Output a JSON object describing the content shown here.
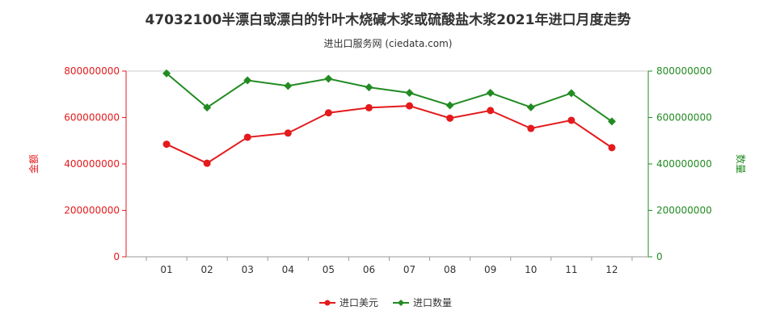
{
  "title": "47032100半漂白或漂白的针叶木烧碱木浆或硫酸盐木浆2021年进口月度走势",
  "subtitle": "进出口服务网 (ciedata.com)",
  "colors": {
    "amount": "#e41a1c",
    "quantity": "#228b22",
    "axis_left": "#e41a1c",
    "axis_right": "#228b22",
    "grid": "#dddddd"
  },
  "chart_data": {
    "type": "line",
    "categories": [
      "01",
      "02",
      "03",
      "04",
      "05",
      "06",
      "07",
      "08",
      "09",
      "10",
      "11",
      "12"
    ],
    "y_left": {
      "label": "金额",
      "ylim": [
        0,
        800000000
      ],
      "ticks": [
        "0",
        "200000000",
        "400000000",
        "600000000",
        "800000000"
      ]
    },
    "y_right": {
      "label": "数量",
      "ylim": [
        0,
        800000000
      ],
      "ticks": [
        "0",
        "200000000",
        "400000000",
        "600000000",
        "800000000"
      ]
    },
    "series": [
      {
        "name": "进口美元",
        "axis": "left",
        "values": [
          485000000,
          403000000,
          515000000,
          533000000,
          620000000,
          642000000,
          650000000,
          597000000,
          630000000,
          553000000,
          588000000,
          470000000
        ]
      },
      {
        "name": "进口数量",
        "axis": "right",
        "values": [
          790000000,
          643000000,
          760000000,
          736000000,
          767000000,
          730000000,
          706000000,
          652000000,
          706000000,
          644000000,
          705000000,
          583000000
        ]
      }
    ],
    "legend": "bottom-center",
    "grid": false
  }
}
